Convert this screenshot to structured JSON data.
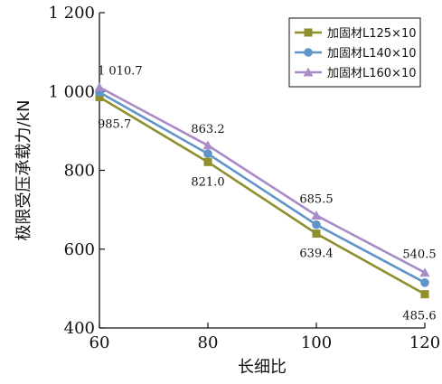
{
  "chart_data": {
    "type": "line",
    "xlabel": "长细比",
    "ylabel": "极限受压承载力/kN",
    "xlim": [
      60,
      120
    ],
    "ylim": [
      400,
      1200
    ],
    "x_ticks": [
      "60",
      "80",
      "100",
      "120"
    ],
    "y_ticks": [
      "400",
      "600",
      "800",
      "1 000",
      "1 200"
    ],
    "x": [
      60,
      80,
      100,
      120
    ],
    "legend_position": "top-right",
    "grid": false,
    "series": [
      {
        "name": "加固材L125×10",
        "color": "#8f8f2e",
        "marker": "square",
        "values": [
          985.7,
          821.0,
          639.4,
          485.6
        ]
      },
      {
        "name": "加固材L140×10",
        "color": "#5f95c9",
        "marker": "circle",
        "values": [
          998.0,
          842.0,
          662.0,
          515.0
        ]
      },
      {
        "name": "加固材L160×10",
        "color": "#a98cc7",
        "marker": "triangle",
        "values": [
          1010.7,
          863.2,
          685.5,
          540.5
        ]
      }
    ],
    "annotations": [
      {
        "text": "1 010.7",
        "x": 60,
        "y": 1010.7,
        "series": 2
      },
      {
        "text": "985.7",
        "x": 60,
        "y": 985.7,
        "series": 0
      },
      {
        "text": "863.2",
        "x": 80,
        "y": 863.2,
        "series": 2
      },
      {
        "text": "821.0",
        "x": 80,
        "y": 821.0,
        "series": 0
      },
      {
        "text": "685.5",
        "x": 100,
        "y": 685.5,
        "series": 2
      },
      {
        "text": "639.4",
        "x": 100,
        "y": 639.4,
        "series": 0
      },
      {
        "text": "540.5",
        "x": 120,
        "y": 540.5,
        "series": 2
      },
      {
        "text": "485.6",
        "x": 120,
        "y": 485.6,
        "series": 0
      }
    ]
  }
}
